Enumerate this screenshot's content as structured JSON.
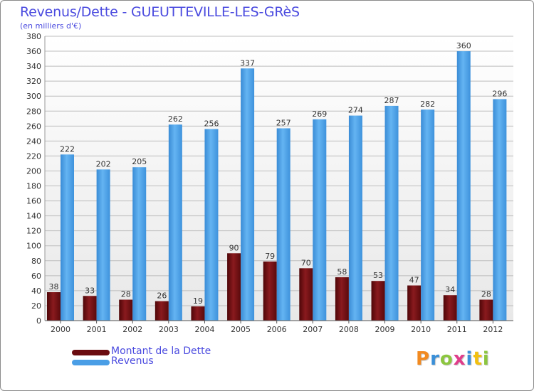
{
  "title": "Revenus/Dette - GUEUTTEVILLE-LES-GRèS",
  "subtitle": "(en milliers d'€)",
  "brand": {
    "text": "Proxiti",
    "letter_colors": [
      "#f28a20",
      "#3a8fd8",
      "#8cc63f",
      "#e03c8a",
      "#3a8fd8",
      "#f2c010",
      "#8cc63f"
    ]
  },
  "legend": [
    {
      "label": "Montant de la Dette",
      "color": "#7a1014"
    },
    {
      "label": "Revenus",
      "color": "#4a9ee6"
    }
  ],
  "chart_data": {
    "type": "bar",
    "title": "Revenus/Dette - GUEUTTEVILLE-LES-GRèS",
    "subtitle": "(en milliers d'€)",
    "xlabel": "",
    "ylabel": "",
    "categories": [
      "2000",
      "2001",
      "2002",
      "2003",
      "2004",
      "2005",
      "2006",
      "2007",
      "2008",
      "2009",
      "2010",
      "2011",
      "2012"
    ],
    "series": [
      {
        "name": "Montant de la Dette",
        "color": "#7a1014",
        "values": [
          38,
          33,
          28,
          26,
          19,
          90,
          79,
          70,
          58,
          53,
          47,
          34,
          28
        ]
      },
      {
        "name": "Revenus",
        "color": "#4a9ee6",
        "values": [
          222,
          202,
          205,
          262,
          256,
          337,
          257,
          269,
          274,
          287,
          282,
          360,
          296
        ]
      }
    ],
    "ylim": [
      0,
      380
    ],
    "ytick_step": 20,
    "grid": true,
    "legend_position": "bottom-left"
  }
}
